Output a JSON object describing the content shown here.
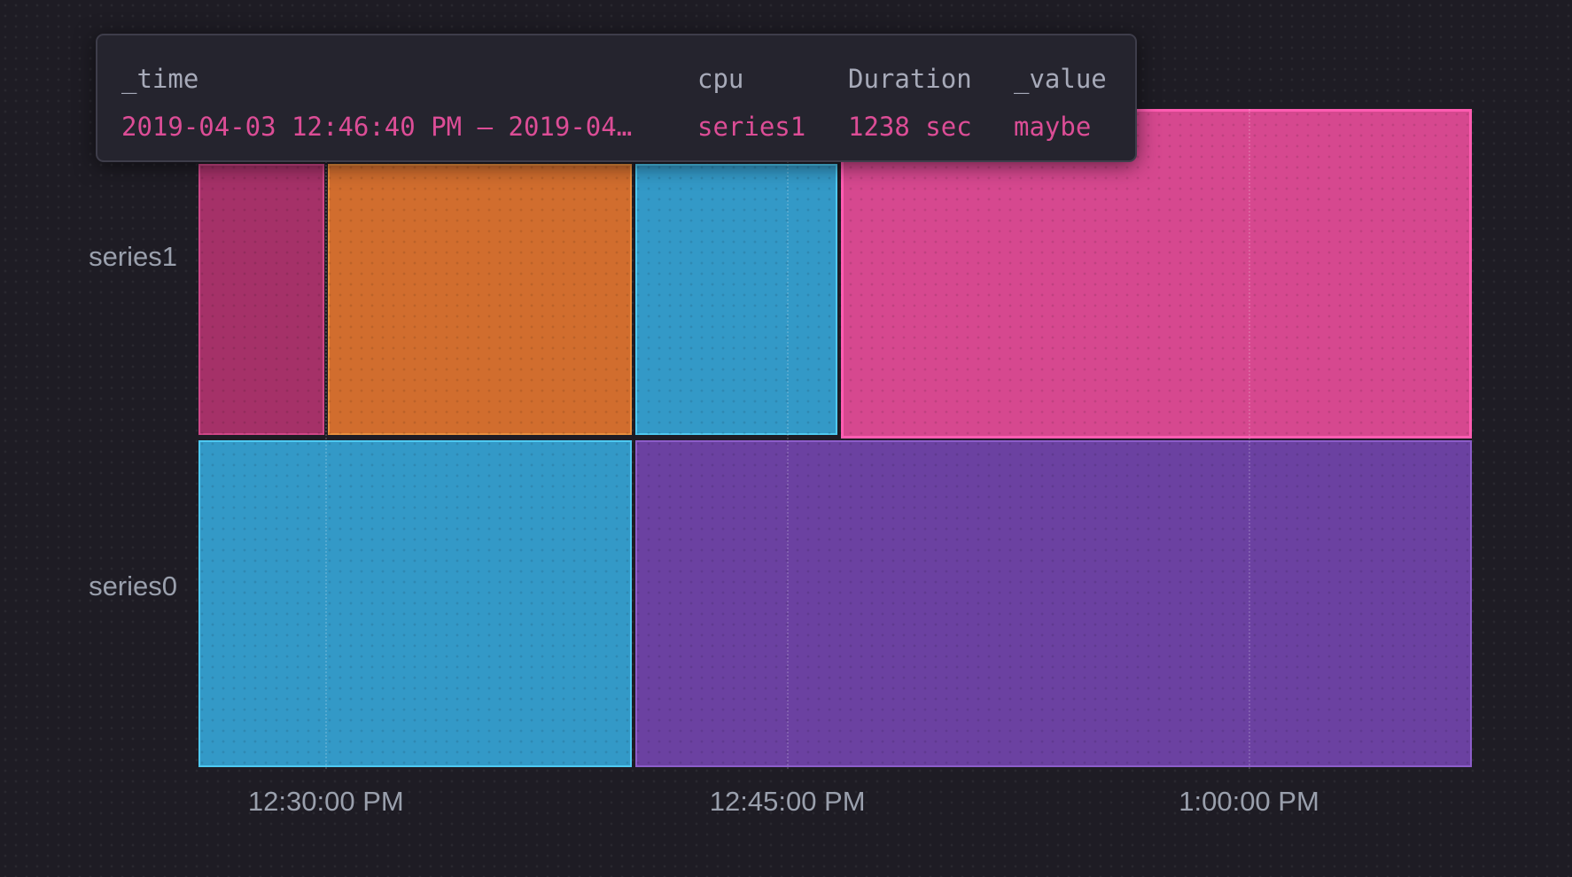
{
  "page": {
    "background": "#1e1c24"
  },
  "tooltip": {
    "background": "#25242e",
    "border_color": "#3e3d4a",
    "header_color": "#a7aab9",
    "value_color": "#dc4d96",
    "columns": [
      {
        "header": "_time",
        "value": "2019-04-03 12:46:40 PM — 2019-04…"
      },
      {
        "header": "cpu",
        "value": "series1"
      },
      {
        "header": "Duration",
        "value": "1238 sec"
      },
      {
        "header": "_value",
        "value": "maybe"
      }
    ]
  },
  "axes": {
    "label_color": "#9aa0ad",
    "y_labels": [
      "series1",
      "series0"
    ],
    "x_labels": [
      "12:30:00 PM",
      "12:45:00 PM",
      "1:00:00 PM"
    ]
  },
  "chart_data": {
    "type": "mosaic",
    "title": "",
    "xlabel": "",
    "ylabel": "",
    "legend": "none",
    "grid": "dotted vertical lines at x ticks",
    "y_categories": [
      "series1",
      "series0"
    ],
    "x_domain": {
      "start_label": "12:25:48 PM",
      "end_label": "1:07:18 PM",
      "start_seconds": 44748,
      "end_seconds": 47238
    },
    "x_ticks": [
      {
        "label": "12:30:00 PM",
        "seconds": 45000
      },
      {
        "label": "12:45:00 PM",
        "seconds": 45900
      },
      {
        "label": "1:00:00 PM",
        "seconds": 46800
      }
    ],
    "hovered_segment": {
      "series": "series1",
      "time": "2019-04-03 12:46:40 PM — 2019-04…",
      "cpu": "series1",
      "duration": "1238 sec",
      "value": "maybe"
    },
    "series": [
      {
        "name": "series1",
        "segments": [
          {
            "start": "12:25:48 PM",
            "end": "12:30:00 PM",
            "start_seconds": 44748,
            "end_seconds": 45000,
            "fill": "#a53168",
            "stroke": "#cf4788",
            "hovered": false
          },
          {
            "start": "12:30:00 PM",
            "end": "12:40:00 PM",
            "start_seconds": 45000,
            "end_seconds": 45600,
            "fill": "#d16d2e",
            "stroke": "#e98f3e",
            "hovered": false
          },
          {
            "start": "12:40:00 PM",
            "end": "12:46:40 PM",
            "start_seconds": 45600,
            "end_seconds": 46000,
            "fill": "#3399c7",
            "stroke": "#4ec9f1",
            "hovered": false
          },
          {
            "start": "12:46:40 PM",
            "end": "1:07:18 PM",
            "start_seconds": 46000,
            "end_seconds": 47238,
            "fill": "#d6488f",
            "stroke": "#ff5cb1",
            "hovered": true
          }
        ]
      },
      {
        "name": "series0",
        "segments": [
          {
            "start": "12:25:48 PM",
            "end": "12:40:00 PM",
            "start_seconds": 44748,
            "end_seconds": 45600,
            "fill": "#3399c7",
            "stroke": "#4ec9f1",
            "hovered": false
          },
          {
            "start": "12:40:00 PM",
            "end": "1:07:18 PM",
            "start_seconds": 45600,
            "end_seconds": 47238,
            "fill": "#6b41a1",
            "stroke": "#8c5dc9",
            "hovered": false
          }
        ]
      }
    ]
  }
}
